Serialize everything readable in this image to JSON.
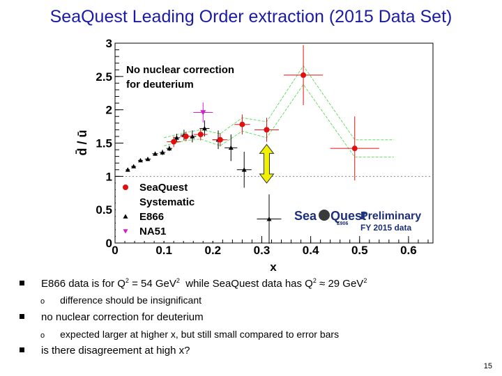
{
  "title": "SeaQuest Leading Order extraction (2015 Data Set)",
  "chart_data": {
    "type": "scatter",
    "xlabel": "x",
    "ylabel": "d̄ / ū",
    "xlim": [
      0,
      0.65
    ],
    "ylim": [
      0,
      3
    ],
    "x_ticks": [
      "0",
      "0.1",
      "0.2",
      "0.3",
      "0.4",
      "0.5",
      "0.6"
    ],
    "y_ticks": [
      "0",
      "0.5",
      "1",
      "1.5",
      "2",
      "2.5",
      "3"
    ],
    "reference_line_y": 1,
    "annotation": "No nuclear correction for deuterium",
    "legend_placement": "bottom-left",
    "series": [
      {
        "name": "SeaQuest",
        "color": "#e01010",
        "marker": "circle",
        "points": [
          {
            "x": 0.12,
            "y": 1.52,
            "xerr": 0.014,
            "yerr": 0.08
          },
          {
            "x": 0.145,
            "y": 1.6,
            "xerr": 0.012,
            "yerr": 0.07
          },
          {
            "x": 0.175,
            "y": 1.63,
            "xerr": 0.014,
            "yerr": 0.09
          },
          {
            "x": 0.215,
            "y": 1.55,
            "xerr": 0.015,
            "yerr": 0.1
          },
          {
            "x": 0.26,
            "y": 1.78,
            "xerr": 0.016,
            "yerr": 0.15
          },
          {
            "x": 0.31,
            "y": 1.7,
            "xerr": 0.025,
            "yerr": 0.18
          },
          {
            "x": 0.385,
            "y": 2.52,
            "xerr": 0.04,
            "yerr": 0.45
          },
          {
            "x": 0.49,
            "y": 1.42,
            "xerr": 0.05,
            "yerr": 0.48
          }
        ]
      },
      {
        "name": "Systematic",
        "color": "#66dd66",
        "marker": "band",
        "upper": [
          [
            0.1,
            1.58
          ],
          [
            0.145,
            1.66
          ],
          [
            0.175,
            1.7
          ],
          [
            0.215,
            1.64
          ],
          [
            0.26,
            1.88
          ],
          [
            0.31,
            1.82
          ],
          [
            0.385,
            2.66
          ],
          [
            0.49,
            1.55
          ],
          [
            0.57,
            1.55
          ]
        ],
        "lower": [
          [
            0.1,
            1.46
          ],
          [
            0.145,
            1.54
          ],
          [
            0.175,
            1.56
          ],
          [
            0.215,
            1.46
          ],
          [
            0.26,
            1.68
          ],
          [
            0.31,
            1.58
          ],
          [
            0.385,
            2.38
          ],
          [
            0.49,
            1.29
          ],
          [
            0.57,
            1.29
          ]
        ]
      },
      {
        "name": "E866",
        "color": "#000000",
        "marker": "triangle-up",
        "points": [
          {
            "x": 0.026,
            "y": 1.1,
            "xerr": 0.004,
            "yerr": 0.02
          },
          {
            "x": 0.038,
            "y": 1.15,
            "xerr": 0.005,
            "yerr": 0.02
          },
          {
            "x": 0.052,
            "y": 1.24,
            "xerr": 0.005,
            "yerr": 0.02
          },
          {
            "x": 0.067,
            "y": 1.26,
            "xerr": 0.006,
            "yerr": 0.03
          },
          {
            "x": 0.082,
            "y": 1.34,
            "xerr": 0.006,
            "yerr": 0.03
          },
          {
            "x": 0.097,
            "y": 1.36,
            "xerr": 0.006,
            "yerr": 0.04
          },
          {
            "x": 0.111,
            "y": 1.42,
            "xerr": 0.006,
            "yerr": 0.04
          },
          {
            "x": 0.126,
            "y": 1.58,
            "xerr": 0.007,
            "yerr": 0.06
          },
          {
            "x": 0.141,
            "y": 1.62,
            "xerr": 0.007,
            "yerr": 0.08
          },
          {
            "x": 0.158,
            "y": 1.6,
            "xerr": 0.008,
            "yerr": 0.09
          },
          {
            "x": 0.183,
            "y": 1.72,
            "xerr": 0.01,
            "yerr": 0.12
          },
          {
            "x": 0.211,
            "y": 1.55,
            "xerr": 0.012,
            "yerr": 0.14
          },
          {
            "x": 0.237,
            "y": 1.43,
            "xerr": 0.013,
            "yerr": 0.2
          },
          {
            "x": 0.264,
            "y": 1.1,
            "xerr": 0.015,
            "yerr": 0.27
          },
          {
            "x": 0.315,
            "y": 0.36,
            "xerr": 0.025,
            "yerr": 0.37
          }
        ]
      },
      {
        "name": "NA51",
        "color": "#cc22cc",
        "marker": "triangle-down",
        "points": [
          {
            "x": 0.18,
            "y": 1.96,
            "xerr": 0.02,
            "yerr": 0.15
          }
        ]
      }
    ],
    "overlay_arrow": {
      "color": "#f0f000",
      "x": 0.31,
      "y_from": 0.9,
      "y_to": 1.48
    }
  },
  "logo": {
    "text_sea": "Sea",
    "text_quest": "Quest",
    "sub": "E906",
    "preliminary": "Preliminary",
    "fy": "FY 2015 data"
  },
  "bullets": [
    {
      "main_parts": [
        "E866 data is for Q",
        "2",
        " = 54 GeV",
        "2",
        "  while SeaQuest data has Q",
        "2",
        " ≈ 29 GeV",
        "2"
      ],
      "sub": "difference should be insignificant"
    },
    {
      "main": "no nuclear correction for deuterium",
      "sub": "expected larger at higher x, but still small compared to error bars"
    },
    {
      "main": "is there disagreement at high x?"
    }
  ],
  "page_number": "15"
}
